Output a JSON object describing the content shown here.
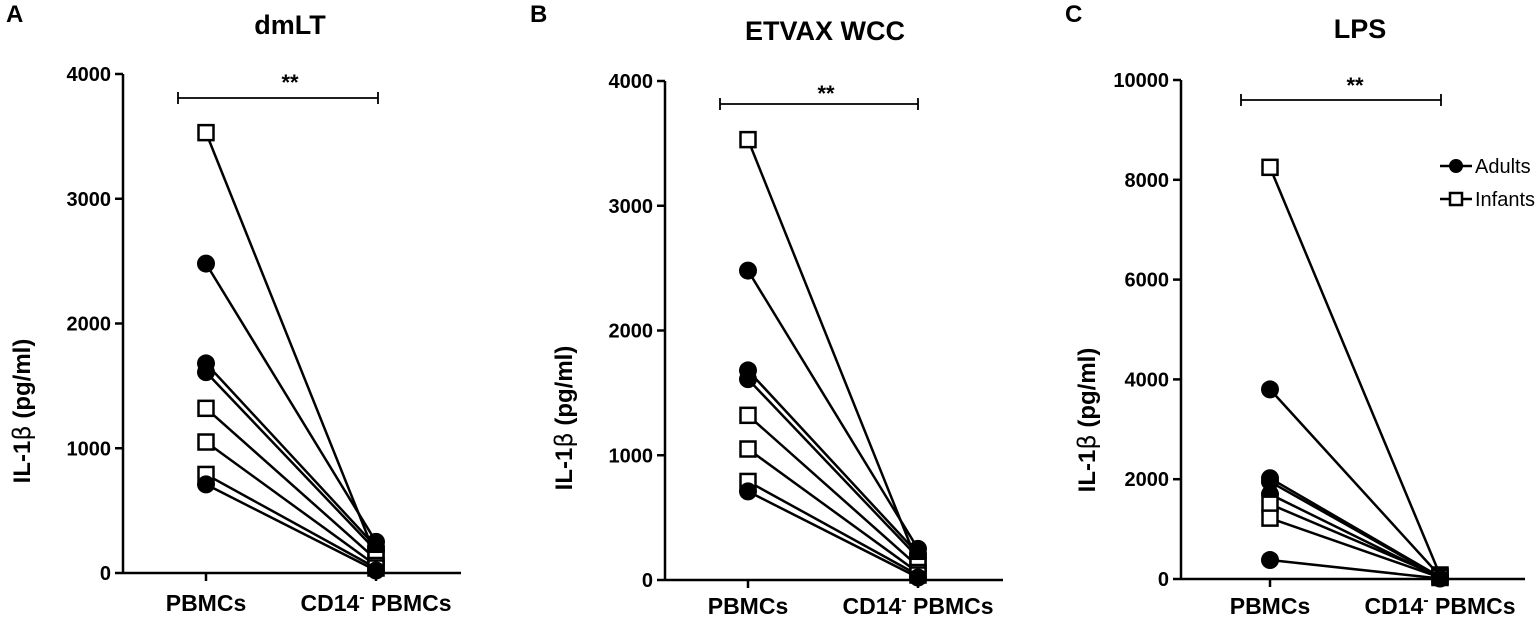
{
  "chart_data": [
    {
      "type": "scatter",
      "panel": "A",
      "title": "dmLT",
      "ylabel_main": "IL-1",
      "ylabel_greek": "β",
      "ylabel_unit": "(pg/ml)",
      "ylim": [
        0,
        4000
      ],
      "yticks": [
        0,
        1000,
        2000,
        3000,
        4000
      ],
      "categories": [
        "PBMCs",
        "CD14⁻ PBMCs"
      ],
      "significance": "**",
      "pairs": [
        {
          "group": "Infants",
          "values": [
            3530,
            130
          ]
        },
        {
          "group": "Adults",
          "values": [
            2480,
            250
          ]
        },
        {
          "group": "Adults",
          "values": [
            1680,
            210
          ]
        },
        {
          "group": "Adults",
          "values": [
            1610,
            180
          ]
        },
        {
          "group": "Infants",
          "values": [
            1320,
            110
          ]
        },
        {
          "group": "Infants",
          "values": [
            1050,
            60
          ]
        },
        {
          "group": "Infants",
          "values": [
            790,
            40
          ]
        },
        {
          "group": "Adults",
          "values": [
            710,
            20
          ]
        }
      ]
    },
    {
      "type": "scatter",
      "panel": "B",
      "title": "ETVAX WCC",
      "ylabel_main": "IL-1",
      "ylabel_greek": "β",
      "ylabel_unit": "(pg/ml)",
      "ylim": [
        0,
        4000
      ],
      "yticks": [
        0,
        1000,
        2000,
        3000,
        4000
      ],
      "categories": [
        "PBMCs",
        "CD14⁻ PBMCs"
      ],
      "significance": "**",
      "pairs": [
        {
          "group": "Infants",
          "values": [
            3530,
            130
          ]
        },
        {
          "group": "Adults",
          "values": [
            2480,
            250
          ]
        },
        {
          "group": "Adults",
          "values": [
            1680,
            210
          ]
        },
        {
          "group": "Adults",
          "values": [
            1610,
            180
          ]
        },
        {
          "group": "Infants",
          "values": [
            1320,
            110
          ]
        },
        {
          "group": "Infants",
          "values": [
            1050,
            60
          ]
        },
        {
          "group": "Infants",
          "values": [
            790,
            40
          ]
        },
        {
          "group": "Adults",
          "values": [
            710,
            20
          ]
        }
      ]
    },
    {
      "type": "scatter",
      "panel": "C",
      "title": "LPS",
      "ylabel_main": "IL-1",
      "ylabel_greek": "β",
      "ylabel_unit": "(pg/ml)",
      "ylim": [
        0,
        10000
      ],
      "yticks": [
        0,
        2000,
        4000,
        6000,
        8000,
        10000
      ],
      "categories": [
        "PBMCs",
        "CD14⁻ PBMCs"
      ],
      "significance": "**",
      "legend": {
        "placement": "top-right",
        "entries": [
          {
            "label": "Adults",
            "marker": "filled-circle"
          },
          {
            "label": "Infants",
            "marker": "open-square"
          }
        ]
      },
      "pairs": [
        {
          "group": "Infants",
          "values": [
            8250,
            80
          ]
        },
        {
          "group": "Adults",
          "values": [
            3800,
            60
          ]
        },
        {
          "group": "Adults",
          "values": [
            2020,
            40
          ]
        },
        {
          "group": "Adults",
          "values": [
            1950,
            30
          ]
        },
        {
          "group": "Adults",
          "values": [
            1700,
            20
          ]
        },
        {
          "group": "Infants",
          "values": [
            1500,
            50
          ]
        },
        {
          "group": "Infants",
          "values": [
            1220,
            30
          ]
        },
        {
          "group": "Adults",
          "values": [
            380,
            10
          ]
        }
      ]
    }
  ]
}
